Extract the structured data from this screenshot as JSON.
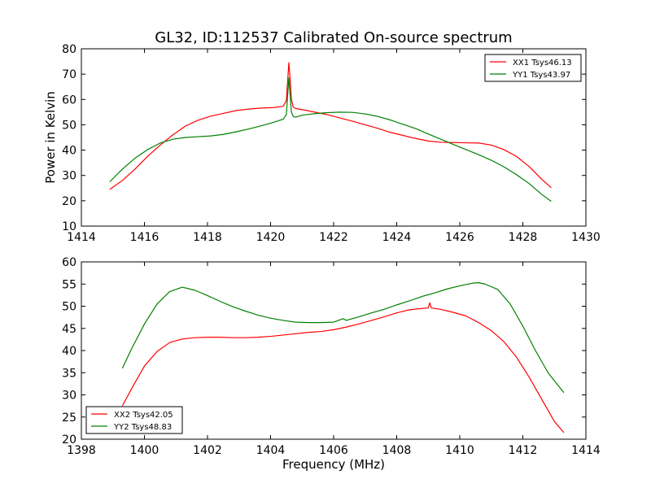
{
  "chart_data": [
    {
      "type": "line",
      "title": "GL32, ID:112537 Calibrated On-source spectrum",
      "xlabel": "",
      "ylabel": "Power in Kelvin",
      "xlim": [
        1414,
        1430
      ],
      "ylim": [
        10,
        80
      ],
      "xticks": [
        1414,
        1416,
        1418,
        1420,
        1422,
        1424,
        1426,
        1428,
        1430
      ],
      "yticks": [
        10,
        20,
        30,
        40,
        50,
        60,
        70,
        80
      ],
      "grid": false,
      "legend": "top-right",
      "series": [
        {
          "name": "XX1 Tsys46.13",
          "color": "#ff0000",
          "x": [
            1414.9,
            1415.3,
            1415.7,
            1416.1,
            1416.5,
            1416.9,
            1417.3,
            1417.7,
            1418.1,
            1418.5,
            1418.9,
            1419.3,
            1419.7,
            1420.1,
            1420.4,
            1420.5,
            1420.58,
            1420.62,
            1420.66,
            1420.72,
            1420.8,
            1421.0,
            1421.4,
            1421.8,
            1422.2,
            1422.6,
            1423.0,
            1423.4,
            1423.8,
            1424.2,
            1424.6,
            1425.0,
            1425.4,
            1425.8,
            1426.2,
            1426.6,
            1427.0,
            1427.4,
            1427.8,
            1428.2,
            1428.6,
            1428.9
          ],
          "y": [
            24.5,
            28,
            32.5,
            37.5,
            42,
            46,
            49.5,
            51.8,
            53.4,
            54.5,
            55.6,
            56.2,
            56.6,
            56.8,
            57.3,
            59.5,
            74.5,
            68,
            60,
            57,
            56.4,
            56.0,
            55.0,
            54.0,
            52.7,
            51.4,
            50.0,
            48.6,
            47.0,
            45.8,
            44.6,
            43.6,
            43.1,
            43.0,
            42.9,
            42.8,
            42.0,
            40.2,
            37.5,
            33.5,
            28.5,
            25.2
          ]
        },
        {
          "name": "YY1 Tsys43.97",
          "color": "#008000",
          "x": [
            1414.9,
            1415.3,
            1415.7,
            1416.1,
            1416.5,
            1416.9,
            1417.3,
            1417.7,
            1418.1,
            1418.5,
            1418.9,
            1419.3,
            1419.7,
            1420.1,
            1420.4,
            1420.5,
            1420.58,
            1420.62,
            1420.66,
            1420.72,
            1420.8,
            1421.0,
            1421.4,
            1421.8,
            1422.2,
            1422.6,
            1423.0,
            1423.4,
            1423.8,
            1424.2,
            1424.6,
            1425.0,
            1425.4,
            1425.8,
            1426.2,
            1426.6,
            1427.0,
            1427.4,
            1427.8,
            1428.2,
            1428.6,
            1428.9
          ],
          "y": [
            27.5,
            32.5,
            36.8,
            40.2,
            42.8,
            44.3,
            45.0,
            45.3,
            45.6,
            46.2,
            47.2,
            48.3,
            49.6,
            51.0,
            52.2,
            54.0,
            68.5,
            62.0,
            55.0,
            53.3,
            53.0,
            53.8,
            54.4,
            54.8,
            55.0,
            54.9,
            54.3,
            53.3,
            51.9,
            50.2,
            48.5,
            46.4,
            44.3,
            42.2,
            40.2,
            38.2,
            36.0,
            33.4,
            30.3,
            26.8,
            22.5,
            19.8
          ]
        }
      ]
    },
    {
      "type": "line",
      "title": "",
      "xlabel": "Frequency (MHz)",
      "ylabel": "",
      "xlim": [
        1398,
        1414
      ],
      "ylim": [
        20,
        60
      ],
      "xticks": [
        1398,
        1400,
        1402,
        1404,
        1406,
        1408,
        1410,
        1412,
        1414
      ],
      "yticks": [
        20,
        25,
        30,
        35,
        40,
        45,
        50,
        55,
        60
      ],
      "grid": false,
      "legend": "bottom-left",
      "series": [
        {
          "name": "XX2 Tsys42.05",
          "color": "#ff0000",
          "x": [
            1399.3,
            1399.6,
            1400.0,
            1400.4,
            1400.8,
            1401.2,
            1401.6,
            1402.0,
            1402.4,
            1402.8,
            1403.2,
            1403.6,
            1404.0,
            1404.4,
            1404.8,
            1405.2,
            1405.6,
            1406.0,
            1406.4,
            1406.8,
            1407.2,
            1407.6,
            1408.0,
            1408.4,
            1408.8,
            1409.0,
            1409.05,
            1409.1,
            1409.4,
            1409.8,
            1410.2,
            1410.6,
            1411.0,
            1411.4,
            1411.8,
            1412.2,
            1412.6,
            1413.0,
            1413.3
          ],
          "y": [
            27.5,
            31.5,
            36.5,
            39.8,
            41.8,
            42.6,
            42.9,
            43.0,
            43.0,
            42.9,
            42.9,
            43.0,
            43.2,
            43.5,
            43.8,
            44.1,
            44.3,
            44.7,
            45.3,
            46.0,
            46.8,
            47.6,
            48.5,
            49.2,
            49.5,
            49.6,
            50.8,
            49.6,
            49.3,
            48.6,
            47.8,
            46.3,
            44.5,
            42.0,
            38.5,
            34.0,
            29.0,
            24.0,
            21.5
          ]
        },
        {
          "name": "YY2 Tsys48.83",
          "color": "#008000",
          "x": [
            1399.3,
            1399.6,
            1400.0,
            1400.4,
            1400.8,
            1401.2,
            1401.6,
            1402.0,
            1402.4,
            1402.8,
            1403.2,
            1403.6,
            1404.0,
            1404.4,
            1404.8,
            1405.2,
            1405.6,
            1406.0,
            1406.3,
            1406.4,
            1406.8,
            1407.2,
            1407.6,
            1408.0,
            1408.4,
            1408.8,
            1409.2,
            1409.6,
            1410.0,
            1410.4,
            1410.6,
            1410.8,
            1411.2,
            1411.6,
            1412.0,
            1412.4,
            1412.8,
            1413.3
          ],
          "y": [
            36.0,
            40.5,
            46.0,
            50.5,
            53.3,
            54.3,
            53.6,
            52.4,
            51.1,
            49.9,
            48.9,
            48.0,
            47.3,
            46.8,
            46.4,
            46.3,
            46.3,
            46.4,
            47.2,
            46.8,
            47.6,
            48.5,
            49.3,
            50.3,
            51.2,
            52.2,
            53.0,
            53.9,
            54.6,
            55.2,
            55.3,
            55.0,
            53.8,
            50.5,
            45.5,
            40.0,
            35.0,
            30.5
          ]
        }
      ]
    }
  ]
}
